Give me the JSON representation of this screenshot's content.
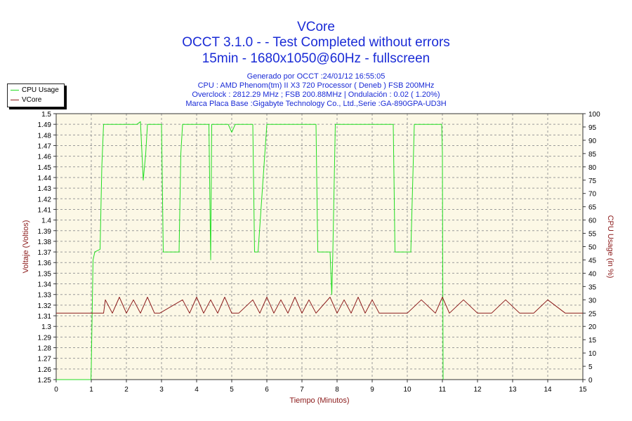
{
  "title": "VCore",
  "subtitle_1": "OCCT 3.1.0 -  - Test Completed without errors",
  "subtitle_2": "15min - 1680x1050@60Hz - fullscreen",
  "info": [
    "Generado por OCCT :24/01/12 16:55:05",
    "CPU : AMD Phenom(tm) II X3 720 Processor ( Deneb ) FSB 200MHz",
    "Overclock : 2812.29 MHz ; FSB 200.88MHz | Ondulación : 0.02 ( 1.20%)",
    "Marca Placa Base :Gigabyte Technology Co., Ltd.,Serie :GA-890GPA-UD3H"
  ],
  "legend": [
    {
      "name": "CPU Usage",
      "color": "#22dd22"
    },
    {
      "name": "VCore",
      "color": "#8b1a1a"
    }
  ],
  "colors": {
    "title": "#1a2bd6",
    "axis_label": "#8b1a1a",
    "plot_bg": "#fcf8e6",
    "grid": "#9a9a9a"
  },
  "chart_data": {
    "type": "line",
    "xlabel": "Tiempo (Minutos)",
    "ylabel": "Voltaje (Voltios)",
    "y2label": "CPU Usage (in %)",
    "xlim": [
      0,
      15
    ],
    "ylim": [
      1.25,
      1.5
    ],
    "y2lim": [
      0,
      100
    ],
    "grid": true,
    "legend_position": "top-left",
    "x_ticks": [
      "0",
      "1",
      "2",
      "3",
      "4",
      "5",
      "6",
      "7",
      "8",
      "9",
      "10",
      "11",
      "12",
      "13",
      "14",
      "15"
    ],
    "y_ticks": [
      "1.25",
      "1.26",
      "1.27",
      "1.28",
      "1.29",
      "1.3",
      "1.31",
      "1.32",
      "1.33",
      "1.34",
      "1.35",
      "1.36",
      "1.37",
      "1.38",
      "1.39",
      "1.4",
      "1.41",
      "1.42",
      "1.43",
      "1.44",
      "1.45",
      "1.46",
      "1.47",
      "1.48",
      "1.49",
      "1.5"
    ],
    "y2_ticks": [
      "0",
      "5",
      "10",
      "15",
      "20",
      "25",
      "30",
      "35",
      "40",
      "45",
      "50",
      "55",
      "60",
      "65",
      "70",
      "75",
      "80",
      "85",
      "90",
      "95",
      "100"
    ],
    "series": [
      {
        "name": "CPU Usage",
        "axis": "right",
        "x": [
          0,
          0.99,
          1.0,
          1.05,
          1.1,
          1.25,
          1.3,
          1.35,
          1.4,
          1.9,
          2.3,
          2.4,
          2.48,
          2.55,
          2.6,
          2.9,
          3.0,
          3.05,
          3.5,
          3.55,
          3.6,
          4.35,
          4.4,
          4.43,
          4.48,
          4.9,
          5.0,
          5.1,
          5.2,
          5.6,
          5.65,
          5.7,
          5.75,
          6.0,
          7.4,
          7.45,
          7.5,
          7.8,
          7.85,
          7.88,
          7.95,
          8.0,
          9.6,
          9.65,
          9.7,
          10.1,
          10.2,
          10.5,
          10.98,
          11.0,
          11.02
        ],
        "values": [
          0,
          0,
          5,
          45,
          48,
          49,
          80,
          96,
          96,
          96,
          96,
          97,
          75,
          85,
          96,
          96,
          96,
          48,
          48,
          85,
          96,
          96,
          45,
          96,
          96,
          96,
          93,
          96,
          96,
          96,
          48,
          48,
          48,
          96,
          96,
          48,
          48,
          48,
          32,
          48,
          96,
          96,
          96,
          48,
          48,
          48,
          96,
          96,
          96,
          85,
          0
        ]
      },
      {
        "name": "VCore",
        "axis": "left",
        "x": [
          0,
          1.35,
          1.4,
          1.6,
          1.8,
          2.0,
          2.2,
          2.4,
          2.6,
          2.8,
          2.95,
          3.6,
          3.8,
          4.0,
          4.2,
          4.4,
          4.6,
          4.8,
          5.0,
          5.2,
          5.6,
          5.8,
          6.0,
          6.2,
          6.4,
          6.6,
          6.8,
          7.0,
          7.2,
          7.4,
          7.8,
          8.0,
          8.2,
          8.4,
          8.6,
          8.8,
          9.0,
          9.2,
          9.4,
          9.6,
          9.9,
          10.0,
          10.4,
          10.8,
          11.0,
          11.2,
          11.6,
          12.0,
          12.4,
          12.8,
          13.2,
          13.6,
          14.0,
          14.5,
          15
        ],
        "values": [
          1.3125,
          1.3125,
          1.325,
          1.3125,
          1.3275,
          1.3125,
          1.325,
          1.3125,
          1.3275,
          1.3125,
          1.3125,
          1.325,
          1.3125,
          1.3275,
          1.3125,
          1.325,
          1.3125,
          1.3275,
          1.3125,
          1.3125,
          1.325,
          1.3125,
          1.3275,
          1.3125,
          1.325,
          1.3125,
          1.3275,
          1.3125,
          1.325,
          1.3125,
          1.3275,
          1.3125,
          1.325,
          1.3125,
          1.3275,
          1.3125,
          1.325,
          1.3125,
          1.3125,
          1.3125,
          1.3125,
          1.3125,
          1.325,
          1.3125,
          1.3275,
          1.3125,
          1.325,
          1.3125,
          1.3125,
          1.325,
          1.3125,
          1.3125,
          1.325,
          1.3125,
          1.3125
        ]
      }
    ]
  }
}
